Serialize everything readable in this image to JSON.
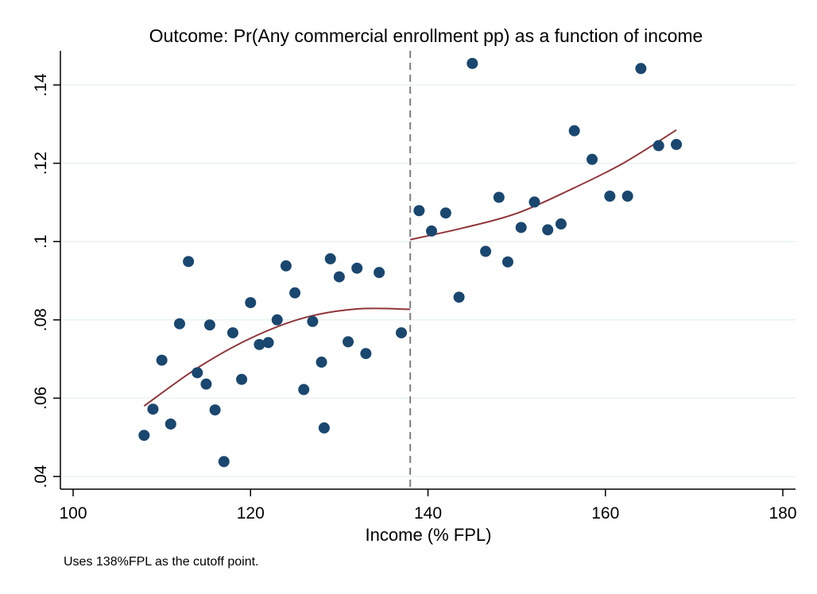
{
  "chart_data": {
    "type": "scatter",
    "title": "Outcome: Pr(Any commercial enrollment pp) as a function of income",
    "xlabel": "Income (% FPL)",
    "ylabel": "",
    "note": "Uses 138%FPL as the cutoff point.",
    "xlim": [
      100,
      180
    ],
    "ylim": [
      0.04,
      0.148
    ],
    "x_ticks": [
      100,
      120,
      140,
      160,
      180
    ],
    "x_tick_labels": [
      "100",
      "120",
      "140",
      "160",
      "180"
    ],
    "y_ticks": [
      0.04,
      0.06,
      0.08,
      0.1,
      0.12,
      0.14
    ],
    "y_tick_labels": [
      ".04",
      ".06",
      ".08",
      ".1",
      ".12",
      ".14"
    ],
    "grid": "horizontal",
    "cutoff": 138,
    "colors": {
      "points": "#1a476f",
      "fit": "#90353b",
      "cutoff": "#7f7f7f",
      "grid": "#eaf2f3"
    },
    "points": [
      [
        108,
        0.0505
      ],
      [
        109,
        0.0572
      ],
      [
        110,
        0.0697
      ],
      [
        111,
        0.0534
      ],
      [
        112,
        0.079
      ],
      [
        113,
        0.0949
      ],
      [
        114,
        0.0665
      ],
      [
        115,
        0.0636
      ],
      [
        115.4,
        0.0787
      ],
      [
        116,
        0.057
      ],
      [
        117,
        0.0438
      ],
      [
        118,
        0.0767
      ],
      [
        119,
        0.0648
      ],
      [
        120,
        0.0844
      ],
      [
        121,
        0.0737
      ],
      [
        122,
        0.0742
      ],
      [
        123,
        0.08
      ],
      [
        124,
        0.0938
      ],
      [
        125,
        0.0869
      ],
      [
        126,
        0.0622
      ],
      [
        127,
        0.0796
      ],
      [
        128,
        0.0692
      ],
      [
        128.3,
        0.0524
      ],
      [
        129,
        0.0956
      ],
      [
        130,
        0.091
      ],
      [
        131,
        0.0744
      ],
      [
        132,
        0.0932
      ],
      [
        133,
        0.0714
      ],
      [
        134.5,
        0.0921
      ],
      [
        137,
        0.0767
      ],
      [
        139,
        0.1079
      ],
      [
        140.4,
        0.1027
      ],
      [
        142,
        0.1073
      ],
      [
        143.5,
        0.0858
      ],
      [
        145,
        0.1455
      ],
      [
        146.5,
        0.0975
      ],
      [
        148,
        0.1113
      ],
      [
        149,
        0.0948
      ],
      [
        150.5,
        0.1036
      ],
      [
        152,
        0.1101
      ],
      [
        153.5,
        0.103
      ],
      [
        155,
        0.1045
      ],
      [
        156.5,
        0.1283
      ],
      [
        158.5,
        0.121
      ],
      [
        160.5,
        0.1116
      ],
      [
        162.5,
        0.1116
      ],
      [
        164,
        0.1442
      ],
      [
        166,
        0.1245
      ],
      [
        168,
        0.1248
      ]
    ],
    "fit_left": {
      "x": [
        108,
        114,
        120,
        126,
        132,
        138
      ],
      "y": [
        0.058,
        0.0677,
        0.0753,
        0.0805,
        0.0828,
        0.0827
      ]
    },
    "fit_right": {
      "x": [
        138,
        144,
        150,
        156,
        162,
        168
      ],
      "y": [
        0.1005,
        0.1035,
        0.1072,
        0.1132,
        0.12,
        0.1285
      ]
    }
  }
}
